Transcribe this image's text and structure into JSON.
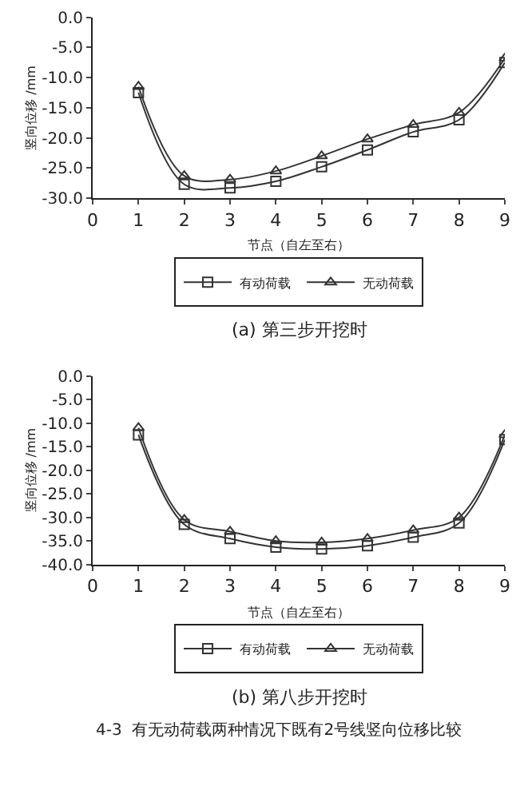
{
  "chart_data": [
    {
      "type": "line",
      "xlabel": "节点（自左至右）",
      "ylabel": "竖向位移 /mm",
      "x": [
        1,
        2,
        3,
        4,
        5,
        6,
        7,
        8,
        9
      ],
      "xlim": [
        0,
        9
      ],
      "xticks": [
        0,
        1,
        2,
        3,
        4,
        5,
        6,
        7,
        8,
        9
      ],
      "ylim": [
        -30,
        0
      ],
      "yticks": [
        {
          "value": -30,
          "label": "-30.0"
        },
        {
          "value": -25,
          "label": "-25.0"
        },
        {
          "value": -20,
          "label": "-20.0"
        },
        {
          "value": -15,
          "label": "-15.0"
        },
        {
          "value": -10,
          "label": "-10.0"
        },
        {
          "value": -5,
          "label": "-5.0"
        },
        {
          "value": 0,
          "label": "0.0"
        }
      ],
      "legend": "bottom",
      "line_style": "solid",
      "annotations": [
        "(a) 第三步开挖时"
      ],
      "series": [
        {
          "name": "有动荷载",
          "color": "#333333",
          "marker": "square",
          "values": [
            -12.5,
            -27.7,
            -28.3,
            -27.2,
            -24.8,
            -22.0,
            -19.0,
            -17.0,
            -7.5
          ]
        },
        {
          "name": "无动荷载",
          "color": "#333333",
          "marker": "triangle",
          "values": [
            -11.5,
            -26.3,
            -26.9,
            -25.5,
            -23.0,
            -20.2,
            -17.8,
            -15.8,
            -6.8
          ]
        }
      ]
    },
    {
      "type": "line",
      "xlabel": "节点（自左至右）",
      "ylabel": "竖向位移 /mm",
      "x": [
        1,
        2,
        3,
        4,
        5,
        6,
        7,
        8,
        9
      ],
      "xlim": [
        0,
        9
      ],
      "xticks": [
        0,
        1,
        2,
        3,
        4,
        5,
        6,
        7,
        8,
        9
      ],
      "ylim": [
        -40,
        0
      ],
      "yticks": [
        {
          "value": -40,
          "label": "-40.0"
        },
        {
          "value": -35,
          "label": "-35.0"
        },
        {
          "value": -30,
          "label": "-30.0"
        },
        {
          "value": -25,
          "label": "-25.0"
        },
        {
          "value": -20,
          "label": "-20.0"
        },
        {
          "value": -15,
          "label": "-15.0"
        },
        {
          "value": -10,
          "label": "-10.0"
        },
        {
          "value": -5,
          "label": "-5.0"
        },
        {
          "value": 0,
          "label": "0.0"
        }
      ],
      "legend": "bottom",
      "line_style": "solid",
      "annotations": [
        "(b) 第八步开挖时",
        "4-3  有无动荷载两种情况下既有2号线竖向位移比较"
      ],
      "series": [
        {
          "name": "有动荷载",
          "color": "#333333",
          "marker": "square",
          "values": [
            -12.5,
            -31.5,
            -34.5,
            -36.3,
            -36.7,
            -36.0,
            -34.2,
            -31.2,
            -13.5
          ]
        },
        {
          "name": "无动荷载",
          "color": "#333333",
          "marker": "triangle",
          "values": [
            -11.0,
            -30.5,
            -33.0,
            -35.0,
            -35.3,
            -34.5,
            -32.7,
            -30.0,
            -12.5
          ]
        }
      ]
    }
  ]
}
